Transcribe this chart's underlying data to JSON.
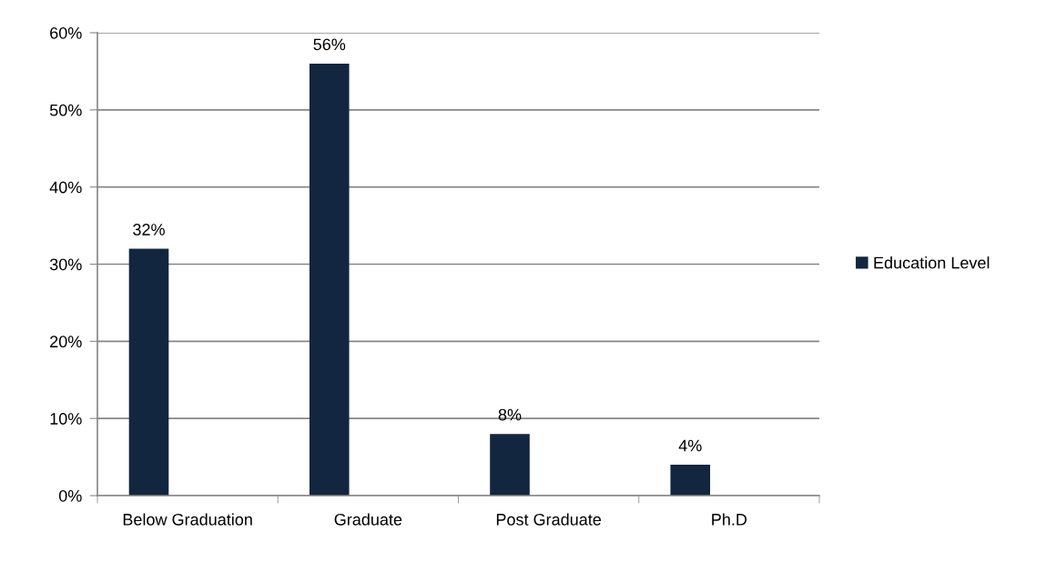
{
  "chart_data": {
    "type": "bar",
    "categories": [
      "Below Graduation",
      "Graduate",
      "Post Graduate",
      "Ph.D"
    ],
    "series": [
      {
        "name": "Education Level",
        "color": "#13263f",
        "values": [
          32,
          56,
          8,
          4
        ],
        "value_labels": [
          "32%",
          "56%",
          "8%",
          "4%"
        ]
      }
    ],
    "ylim": [
      0,
      60
    ],
    "yticks": [
      {
        "value": 0,
        "label": "0%"
      },
      {
        "value": 10,
        "label": "10%"
      },
      {
        "value": 20,
        "label": "20%"
      },
      {
        "value": 30,
        "label": "30%"
      },
      {
        "value": 40,
        "label": "40%"
      },
      {
        "value": 50,
        "label": "50%"
      },
      {
        "value": 60,
        "label": "60%"
      }
    ],
    "grid": "y",
    "legend": "right"
  }
}
